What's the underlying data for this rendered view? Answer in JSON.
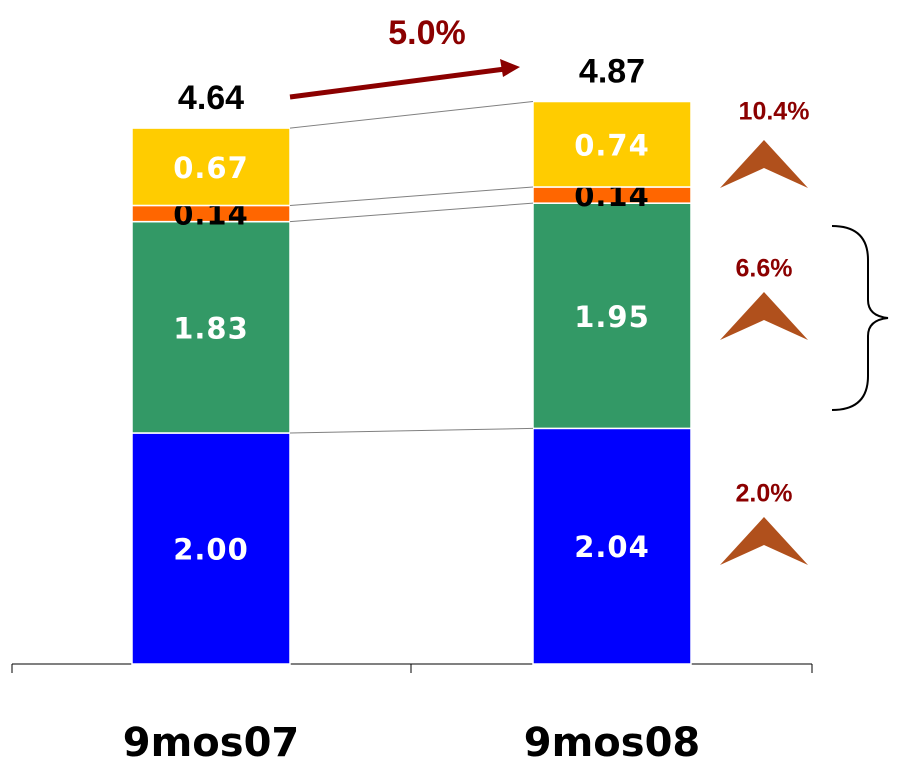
{
  "chart_data": {
    "type": "stacked-bar",
    "categories": [
      "9mos07",
      "9mos08"
    ],
    "series": [
      {
        "color": "#0000ff",
        "label_color": "#ffffff",
        "values": [
          2.0,
          2.04
        ],
        "value_labels": [
          "2.00",
          "2.04"
        ]
      },
      {
        "color": "#339966",
        "label_color": "#ffffff",
        "values": [
          1.83,
          1.95
        ]
      },
      {
        "color": "#ff6600",
        "label_color": "#000000",
        "values": [
          0.14,
          0.14
        ]
      },
      {
        "color": "#ffcc00",
        "label_color": "#ffffff",
        "values": [
          0.67,
          0.74
        ]
      }
    ],
    "totals": [
      4.64,
      4.87
    ],
    "total_growth": "5.0%",
    "segment_growth": [
      "10.4%",
      "6.6%",
      "2.0%"
    ]
  }
}
